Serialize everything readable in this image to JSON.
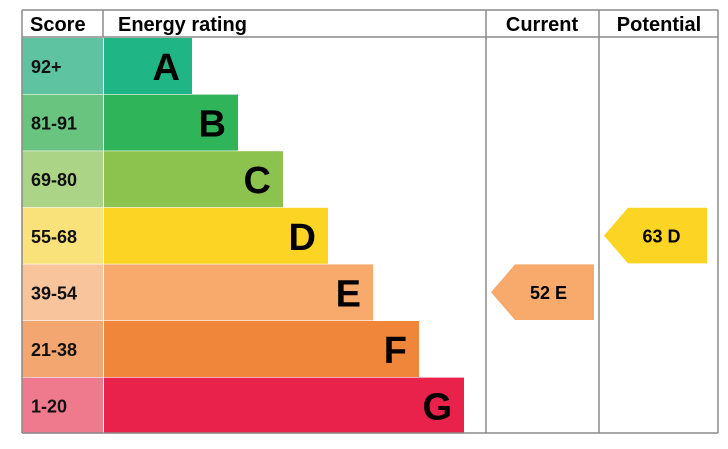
{
  "chart_data": {
    "type": "bar",
    "headers": {
      "score": "Score",
      "rating": "Energy rating",
      "current": "Current",
      "potential": "Potential"
    },
    "bands": [
      {
        "letter": "A",
        "range": "92+",
        "color": "#1fb584",
        "score_color": "#5ec3a0"
      },
      {
        "letter": "B",
        "range": "81-91",
        "color": "#2fb45a",
        "score_color": "#68c47e"
      },
      {
        "letter": "C",
        "range": "69-80",
        "color": "#8cc34e",
        "score_color": "#acd487"
      },
      {
        "letter": "D",
        "range": "55-68",
        "color": "#fcd424",
        "score_color": "#f9e27a"
      },
      {
        "letter": "E",
        "range": "39-54",
        "color": "#f7aa6c",
        "score_color": "#f8c49c"
      },
      {
        "letter": "F",
        "range": "21-38",
        "color": "#f0863a",
        "score_color": "#f3a670"
      },
      {
        "letter": "G",
        "range": "1-20",
        "color": "#e8224a",
        "score_color": "#ef7a8e"
      }
    ],
    "current": {
      "value": 52,
      "band": "E",
      "label": "52  E",
      "color": "#f7aa6c"
    },
    "potential": {
      "value": 63,
      "band": "D",
      "label": "63  D",
      "color": "#fcd424"
    }
  }
}
